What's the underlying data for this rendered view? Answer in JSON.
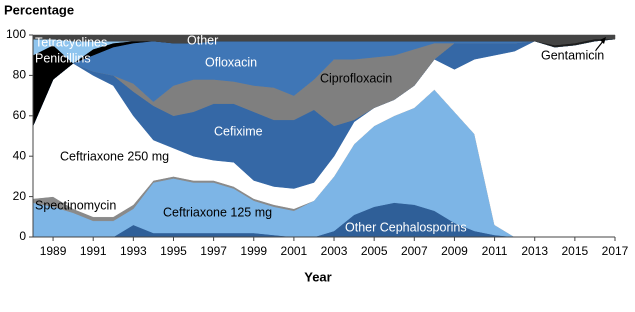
{
  "chart_data": {
    "type": "stacked-area",
    "y_label": "Percentage",
    "x_label": "Year",
    "x": [
      1988,
      1989,
      1990,
      1991,
      1992,
      1993,
      1994,
      1995,
      1996,
      1997,
      1998,
      1999,
      2000,
      2001,
      2002,
      2003,
      2004,
      2005,
      2006,
      2007,
      2008,
      2009,
      2010,
      2011,
      2012,
      2013,
      2014,
      2015,
      2016,
      2017
    ],
    "xlim": [
      1988,
      2017
    ],
    "xticks": [
      1989,
      1991,
      1993,
      1995,
      1997,
      1999,
      2001,
      2003,
      2005,
      2007,
      2009,
      2011,
      2013,
      2015,
      2017
    ],
    "ylim": [
      0,
      100
    ],
    "yticks": [
      0,
      20,
      40,
      60,
      80,
      100
    ],
    "series": [
      {
        "name": "Other Cephalosporins",
        "color": "#2f5f98",
        "values": [
          0,
          0,
          0,
          0,
          0,
          6,
          2,
          2,
          2,
          2,
          2,
          2,
          1,
          0,
          0,
          3,
          11,
          15,
          17,
          16,
          13,
          7,
          3,
          1,
          0,
          0,
          0,
          0,
          0,
          0
        ]
      },
      {
        "name": "Ceftriaxone 125 mg",
        "color": "#7db5e6",
        "values": [
          17,
          15,
          12,
          8,
          8,
          8,
          25,
          27,
          25,
          25,
          22,
          16,
          14,
          13,
          18,
          27,
          35,
          40,
          43,
          48,
          60,
          55,
          48,
          5,
          0,
          0,
          0,
          0,
          0,
          0
        ]
      },
      {
        "name": "Spectinomycin",
        "color": "#8a8a8a",
        "values": [
          2,
          5,
          2,
          2,
          2,
          2,
          1,
          1,
          1,
          1,
          1,
          1,
          1,
          1,
          0,
          0,
          0,
          0,
          0,
          0,
          0,
          0,
          0,
          0,
          0,
          0,
          0,
          0,
          0,
          0
        ]
      },
      {
        "name": "Ceftriaxone 250 mg",
        "color": "#ffffff",
        "values": [
          36,
          58,
          72,
          70,
          65,
          44,
          20,
          14,
          12,
          10,
          12,
          9,
          9,
          10,
          9,
          10,
          11,
          9,
          8,
          11,
          15,
          21,
          37,
          84,
          92,
          97,
          94,
          95,
          97,
          98
        ]
      },
      {
        "name": "Cefixime",
        "color": "#3568a6",
        "values": [
          0,
          0,
          0,
          2,
          5,
          12,
          17,
          16,
          22,
          28,
          29,
          34,
          33,
          34,
          36,
          15,
          1,
          0,
          0,
          0,
          0,
          13,
          8,
          6,
          4,
          0,
          0,
          0,
          0,
          0
        ]
      },
      {
        "name": "Ciprofloxacin",
        "color": "#7f7f7f",
        "values": [
          0,
          0,
          0,
          0,
          0,
          4,
          2,
          15,
          16,
          12,
          11,
          13,
          16,
          12,
          15,
          33,
          30,
          25,
          22,
          18,
          8,
          0,
          0,
          0,
          0,
          0,
          0,
          0,
          0,
          0
        ]
      },
      {
        "name": "Ofloxacin",
        "color": "#3f76b6",
        "values": [
          0,
          0,
          0,
          8,
          14,
          20,
          30,
          21,
          18,
          19,
          20,
          22,
          23,
          27,
          19,
          9,
          9,
          8,
          7,
          4,
          1,
          1,
          1,
          1,
          1,
          0,
          0,
          0,
          0,
          0
        ]
      },
      {
        "name": "Penicillins",
        "color": "#000000",
        "values": [
          35,
          17,
          0,
          3,
          2,
          1,
          0,
          0,
          0,
          0,
          0,
          0,
          0,
          0,
          0,
          0,
          0,
          0,
          0,
          0,
          0,
          0,
          0,
          0,
          0,
          0,
          0,
          0,
          0,
          0
        ]
      },
      {
        "name": "Tetracyclines",
        "color": "#8ec4ee",
        "values": [
          8,
          3,
          11,
          4,
          1,
          0,
          0,
          0,
          0,
          0,
          0,
          0,
          0,
          0,
          0,
          0,
          0,
          0,
          0,
          0,
          0,
          0,
          0,
          0,
          0,
          0,
          0,
          0,
          0,
          0
        ]
      },
      {
        "name": "Gentamicin",
        "color": "#1c1c1c",
        "values": [
          0,
          0,
          0,
          0,
          0,
          0,
          0,
          0,
          0,
          0,
          0,
          0,
          0,
          0,
          0,
          0,
          0,
          0,
          0,
          0,
          0,
          0,
          0,
          0,
          0,
          0,
          1,
          1,
          1,
          0
        ]
      },
      {
        "name": "Other",
        "color": "#444444",
        "values": [
          2,
          2,
          3,
          3,
          3,
          3,
          3,
          4,
          4,
          3,
          3,
          3,
          3,
          3,
          3,
          3,
          3,
          3,
          3,
          3,
          3,
          3,
          3,
          3,
          3,
          3,
          5,
          4,
          2,
          2
        ]
      }
    ]
  }
}
